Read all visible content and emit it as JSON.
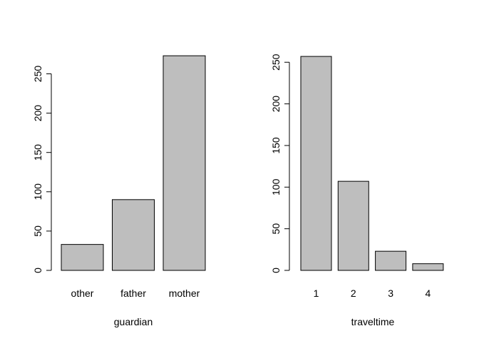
{
  "chart_data": [
    {
      "type": "bar",
      "title": "",
      "xlabel": "guardian",
      "ylabel": "",
      "categories": [
        "other",
        "father",
        "mother"
      ],
      "values": [
        33,
        90,
        273
      ],
      "ylim": [
        0,
        250
      ],
      "yticks": [
        "0",
        "50",
        "100",
        "150",
        "200",
        "250"
      ],
      "bar_fill": "#bebebe",
      "bar_stroke": "#000000",
      "grid": false
    },
    {
      "type": "bar",
      "title": "",
      "xlabel": "traveltime",
      "ylabel": "",
      "categories": [
        "1",
        "2",
        "3",
        "4"
      ],
      "values": [
        257,
        107,
        23,
        8
      ],
      "ylim": [
        0,
        250
      ],
      "yticks": [
        "0",
        "50",
        "100",
        "150",
        "200",
        "250"
      ],
      "bar_fill": "#bebebe",
      "bar_stroke": "#000000",
      "grid": false
    }
  ]
}
